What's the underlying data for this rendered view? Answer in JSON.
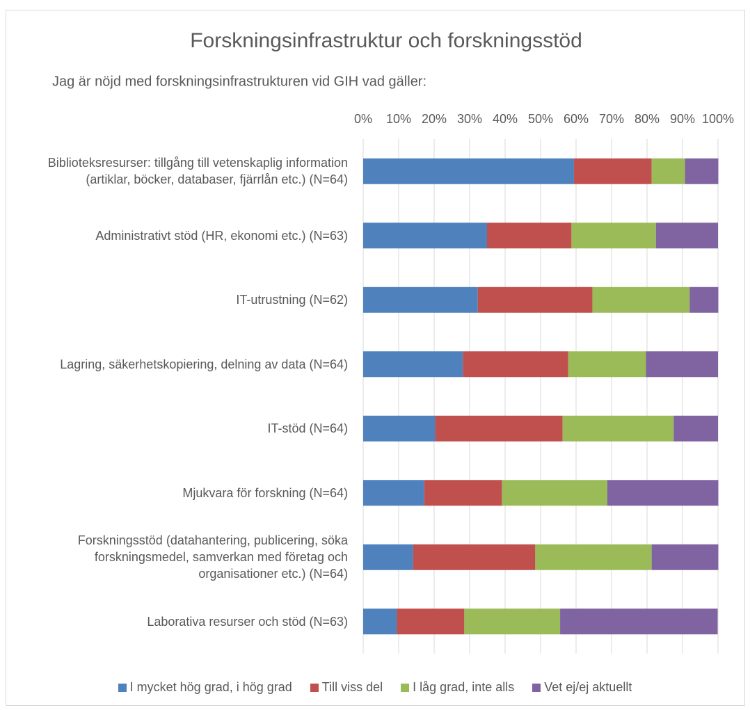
{
  "chart_data": {
    "type": "stacked_bar_horizontal",
    "title": "Forskningsinfrastruktur och forskningsstöd",
    "subtitle": "Jag är nöjd med forskningsinfrastrukturen vid GIH vad gäller:",
    "categories": [
      "Biblioteksresurser: tillgång till vetenskaplig information (artiklar, böcker, databaser, fjärrlån etc.) (N=64)",
      "Administrativt stöd (HR, ekonomi etc.) (N=63)",
      "IT-utrustning (N=62)",
      "Lagring, säkerhetskopiering, delning av data (N=64)",
      "IT-stöd (N=64)",
      "Mjukvara för forskning (N=64)",
      "Forskningsstöd (datahantering, publicering, söka forskningsmedel, samverkan med företag och organisationer etc.) (N=64)",
      "Laborativa resurser och stöd (N=63)"
    ],
    "series": [
      {
        "name": "I mycket hög grad, i hög grad",
        "color": "#4f81bd",
        "values": [
          59.4,
          34.9,
          32.3,
          28.1,
          20.3,
          17.2,
          14.1,
          9.5
        ]
      },
      {
        "name": "Till viss del",
        "color": "#c0504d",
        "values": [
          21.9,
          23.8,
          32.3,
          29.7,
          35.9,
          21.9,
          34.4,
          19.0
        ]
      },
      {
        "name": "I låg grad, inte alls",
        "color": "#9bbb59",
        "values": [
          9.4,
          23.8,
          27.4,
          21.9,
          31.3,
          29.7,
          32.8,
          27.0
        ]
      },
      {
        "name": "Vet ej/ej aktuellt",
        "color": "#8064a2",
        "values": [
          9.4,
          17.5,
          8.1,
          20.3,
          12.5,
          31.3,
          18.8,
          44.4
        ]
      }
    ],
    "xlim": [
      0,
      100
    ],
    "xticks": [
      {
        "value": 0,
        "label": "0%"
      },
      {
        "value": 10,
        "label": "10%"
      },
      {
        "value": 20,
        "label": "20%"
      },
      {
        "value": 30,
        "label": "30%"
      },
      {
        "value": 40,
        "label": "40%"
      },
      {
        "value": 50,
        "label": "50%"
      },
      {
        "value": 60,
        "label": "60%"
      },
      {
        "value": 70,
        "label": "70%"
      },
      {
        "value": 80,
        "label": "80%"
      },
      {
        "value": 90,
        "label": "90%"
      },
      {
        "value": 100,
        "label": "100%"
      }
    ],
    "grid": true,
    "legend": "bottom"
  }
}
